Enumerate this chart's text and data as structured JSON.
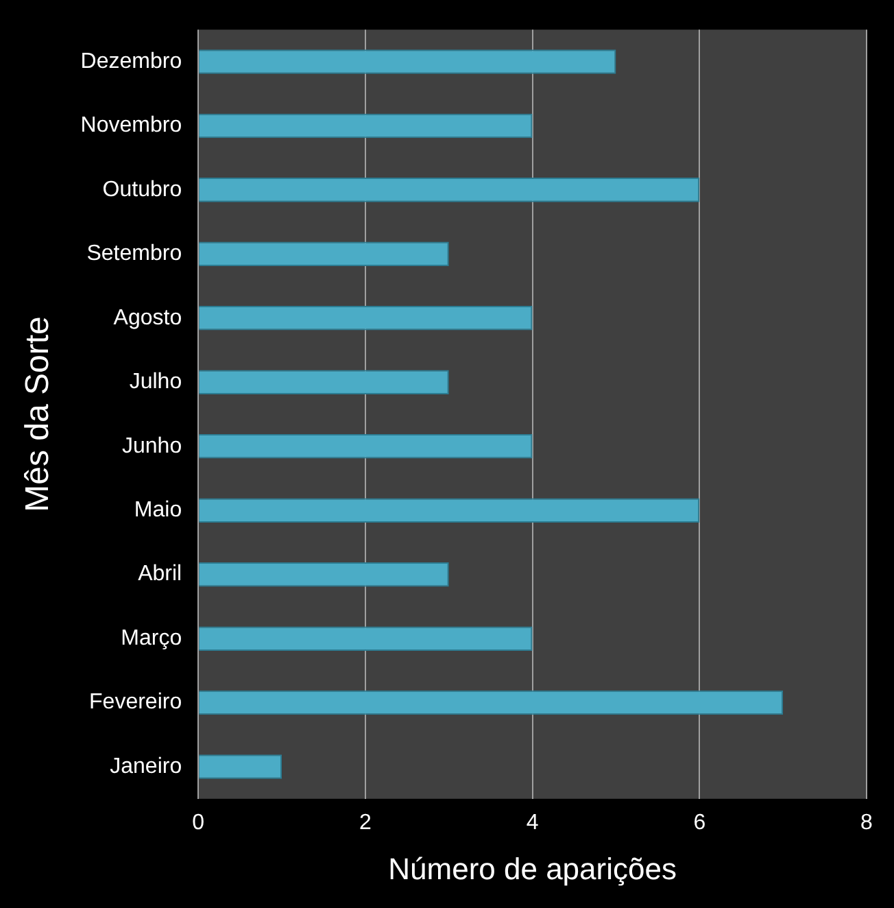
{
  "chart_data": {
    "type": "bar",
    "orientation": "horizontal",
    "xlabel": "Número de aparições",
    "ylabel": "Mês da Sorte",
    "categories": [
      "Dezembro",
      "Novembro",
      "Outubro",
      "Setembro",
      "Agosto",
      "Julho",
      "Junho",
      "Maio",
      "Abril",
      "Março",
      "Fevereiro",
      "Janeiro"
    ],
    "values": [
      5,
      4,
      6,
      3,
      4,
      3,
      4,
      6,
      3,
      4,
      7,
      1
    ],
    "color": "#4bacc6",
    "xlim": [
      0,
      8
    ],
    "xticks": [
      0,
      2,
      4,
      6,
      8
    ],
    "grid": "x",
    "legend": false
  }
}
